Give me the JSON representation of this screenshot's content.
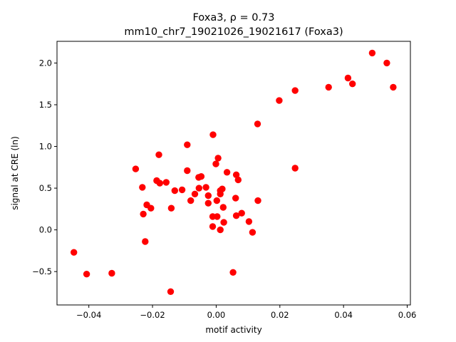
{
  "chart_data": {
    "type": "scatter",
    "title_line1": "Foxa3, ρ = 0.73",
    "title_line2": "mm10_chr7_19021026_19021617 (Foxa3)",
    "xlabel": "motif activity",
    "ylabel": "signal at CRE (ln)",
    "xlim": [
      -0.05,
      0.061
    ],
    "ylim": [
      -0.9,
      2.26
    ],
    "x_ticks": [
      -0.04,
      -0.02,
      0.0,
      0.02,
      0.04,
      0.06
    ],
    "x_tick_labels": [
      "−0.04",
      "−0.02",
      "0.00",
      "0.02",
      "0.04",
      "0.06"
    ],
    "y_ticks": [
      -0.5,
      0.0,
      0.5,
      1.0,
      1.5,
      2.0
    ],
    "y_tick_labels": [
      "−0.5",
      "0.0",
      "0.5",
      "1.0",
      "1.5",
      "2.0"
    ],
    "grid": false,
    "marker_color": "#ff0000",
    "points": [
      {
        "x": -0.0447,
        "y": -0.27
      },
      {
        "x": -0.0407,
        "y": -0.53
      },
      {
        "x": -0.0328,
        "y": -0.52
      },
      {
        "x": -0.0143,
        "y": -0.74
      },
      {
        "x": -0.0253,
        "y": 0.73
      },
      {
        "x": -0.0232,
        "y": 0.51
      },
      {
        "x": -0.0229,
        "y": 0.19
      },
      {
        "x": -0.0223,
        "y": -0.14
      },
      {
        "x": -0.0218,
        "y": 0.3
      },
      {
        "x": -0.0205,
        "y": 0.26
      },
      {
        "x": -0.0187,
        "y": 0.59
      },
      {
        "x": -0.018,
        "y": 0.9
      },
      {
        "x": -0.0177,
        "y": 0.56
      },
      {
        "x": -0.0157,
        "y": 0.57
      },
      {
        "x": -0.0141,
        "y": 0.26
      },
      {
        "x": -0.013,
        "y": 0.47
      },
      {
        "x": -0.0107,
        "y": 0.48
      },
      {
        "x": -0.0091,
        "y": 1.02
      },
      {
        "x": -0.0091,
        "y": 0.71
      },
      {
        "x": -0.008,
        "y": 0.35
      },
      {
        "x": -0.0067,
        "y": 0.43
      },
      {
        "x": -0.0055,
        "y": 0.63
      },
      {
        "x": -0.0054,
        "y": 0.5
      },
      {
        "x": -0.0047,
        "y": 0.64
      },
      {
        "x": -0.0032,
        "y": 0.51
      },
      {
        "x": -0.0025,
        "y": 0.41
      },
      {
        "x": -0.0025,
        "y": 0.32
      },
      {
        "x": -0.0011,
        "y": 0.16
      },
      {
        "x": -0.0011,
        "y": 0.04
      },
      {
        "x": -0.001,
        "y": 1.14
      },
      {
        "x": -0.0001,
        "y": 0.79
      },
      {
        "x": 0.0002,
        "y": 0.35
      },
      {
        "x": 0.0003,
        "y": 0.16
      },
      {
        "x": 0.0006,
        "y": 0.86
      },
      {
        "x": 0.0013,
        "y": 0.47
      },
      {
        "x": 0.0013,
        "y": 0.43
      },
      {
        "x": 0.0013,
        "y": 0.0
      },
      {
        "x": 0.0019,
        "y": 0.49
      },
      {
        "x": 0.0022,
        "y": 0.27
      },
      {
        "x": 0.0024,
        "y": 0.09
      },
      {
        "x": 0.0034,
        "y": 0.69
      },
      {
        "x": 0.0053,
        "y": -0.51
      },
      {
        "x": 0.0061,
        "y": 0.38
      },
      {
        "x": 0.0063,
        "y": 0.66
      },
      {
        "x": 0.0063,
        "y": 0.17
      },
      {
        "x": 0.0069,
        "y": 0.6
      },
      {
        "x": 0.008,
        "y": 0.2
      },
      {
        "x": 0.0103,
        "y": 0.1
      },
      {
        "x": 0.0114,
        "y": -0.03
      },
      {
        "x": 0.013,
        "y": 1.27
      },
      {
        "x": 0.0131,
        "y": 0.35
      },
      {
        "x": 0.0198,
        "y": 1.55
      },
      {
        "x": 0.0248,
        "y": 1.67
      },
      {
        "x": 0.0248,
        "y": 0.74
      },
      {
        "x": 0.0353,
        "y": 1.71
      },
      {
        "x": 0.0414,
        "y": 1.82
      },
      {
        "x": 0.0428,
        "y": 1.75
      },
      {
        "x": 0.049,
        "y": 2.12
      },
      {
        "x": 0.0536,
        "y": 2.0
      },
      {
        "x": 0.0556,
        "y": 1.71
      }
    ]
  }
}
